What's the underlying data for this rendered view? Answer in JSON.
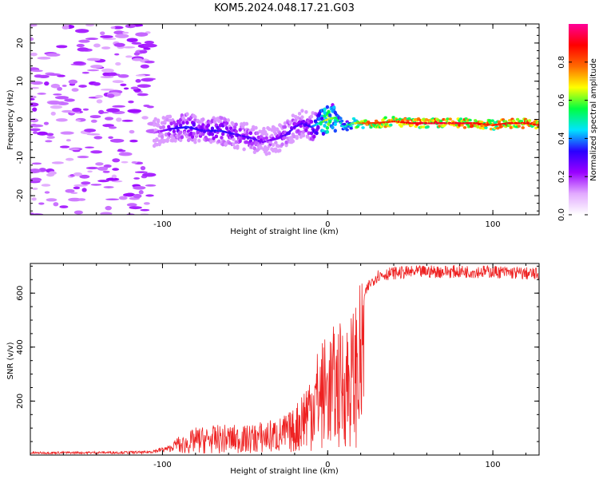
{
  "title": "KOM5.2024.048.17.21.G03",
  "chart_data": [
    {
      "type": "heatmap",
      "xlabel": "Height of straight line (km)",
      "ylabel": "Frequency (Hz)",
      "xlim": [
        -180,
        128
      ],
      "ylim": [
        -25,
        25
      ],
      "x_ticks": [
        -100,
        0,
        100
      ],
      "y_ticks": [
        -20,
        -10,
        0,
        10,
        20
      ],
      "colorbar": {
        "label": "Normalized spectral amplitude",
        "range": [
          0,
          1
        ],
        "ticks": [
          0.0,
          0.2,
          0.4,
          0.6,
          0.8
        ],
        "tick_labels": [
          "0.0",
          "0.2",
          "0.4",
          "0.6",
          "0.8"
        ],
        "colors": [
          "#ffffff",
          "#e2aaff",
          "#9a00ff",
          "#2a00ff",
          "#00e4ff",
          "#00ff40",
          "#ffff00",
          "#ff6a00",
          "#ff0000",
          "#ff0099"
        ]
      },
      "ridge": {
        "x": [
          -105,
          -95,
          -85,
          -75,
          -65,
          -55,
          -45,
          -40,
          -35,
          -30,
          -25,
          -20,
          -15,
          -10,
          -5,
          0,
          5,
          10,
          15,
          20,
          30,
          40,
          50,
          60,
          70,
          80,
          90,
          100,
          110,
          120,
          128
        ],
        "y": [
          -3.5,
          -2.5,
          -2,
          -3,
          -3,
          -4,
          -5,
          -6,
          -5.5,
          -5,
          -4,
          -2,
          -1,
          -2,
          -1,
          0,
          0.5,
          -2,
          -1,
          -1,
          -1,
          -0.5,
          -1,
          -1,
          -1,
          -1,
          -1,
          -1.5,
          -1,
          -1,
          -1.5
        ],
        "amplitude": [
          0.15,
          0.3,
          0.35,
          0.3,
          0.35,
          0.3,
          0.3,
          0.25,
          0.25,
          0.25,
          0.3,
          0.3,
          0.3,
          0.35,
          0.5,
          0.7,
          0.55,
          0.45,
          0.6,
          0.8,
          0.85,
          0.85,
          0.9,
          0.92,
          0.92,
          0.92,
          0.9,
          0.85,
          0.88,
          0.9,
          0.88
        ]
      },
      "noise_region_x": [
        -180,
        -105
      ]
    },
    {
      "type": "line",
      "xlabel": "Height of straight line (km)",
      "ylabel": "SNR (v/v)",
      "xlim": [
        -180,
        128
      ],
      "ylim": [
        0,
        710
      ],
      "x_ticks": [
        -100,
        0,
        100
      ],
      "y_ticks": [
        200,
        400,
        600
      ],
      "series": [
        {
          "color": "#ee2222",
          "envelope_x": [
            -180,
            -110,
            -95,
            -88,
            -80,
            -70,
            -60,
            -50,
            -40,
            -30,
            -20,
            -15,
            -10,
            -5,
            0,
            5,
            10,
            15,
            20,
            25,
            30,
            40,
            60,
            80,
            100,
            128
          ],
          "envelope_y": [
            8,
            10,
            25,
            60,
            90,
            95,
            100,
            95,
            110,
            120,
            150,
            230,
            300,
            360,
            400,
            420,
            440,
            470,
            560,
            640,
            675,
            685,
            690,
            690,
            690,
            680
          ]
        }
      ]
    }
  ]
}
